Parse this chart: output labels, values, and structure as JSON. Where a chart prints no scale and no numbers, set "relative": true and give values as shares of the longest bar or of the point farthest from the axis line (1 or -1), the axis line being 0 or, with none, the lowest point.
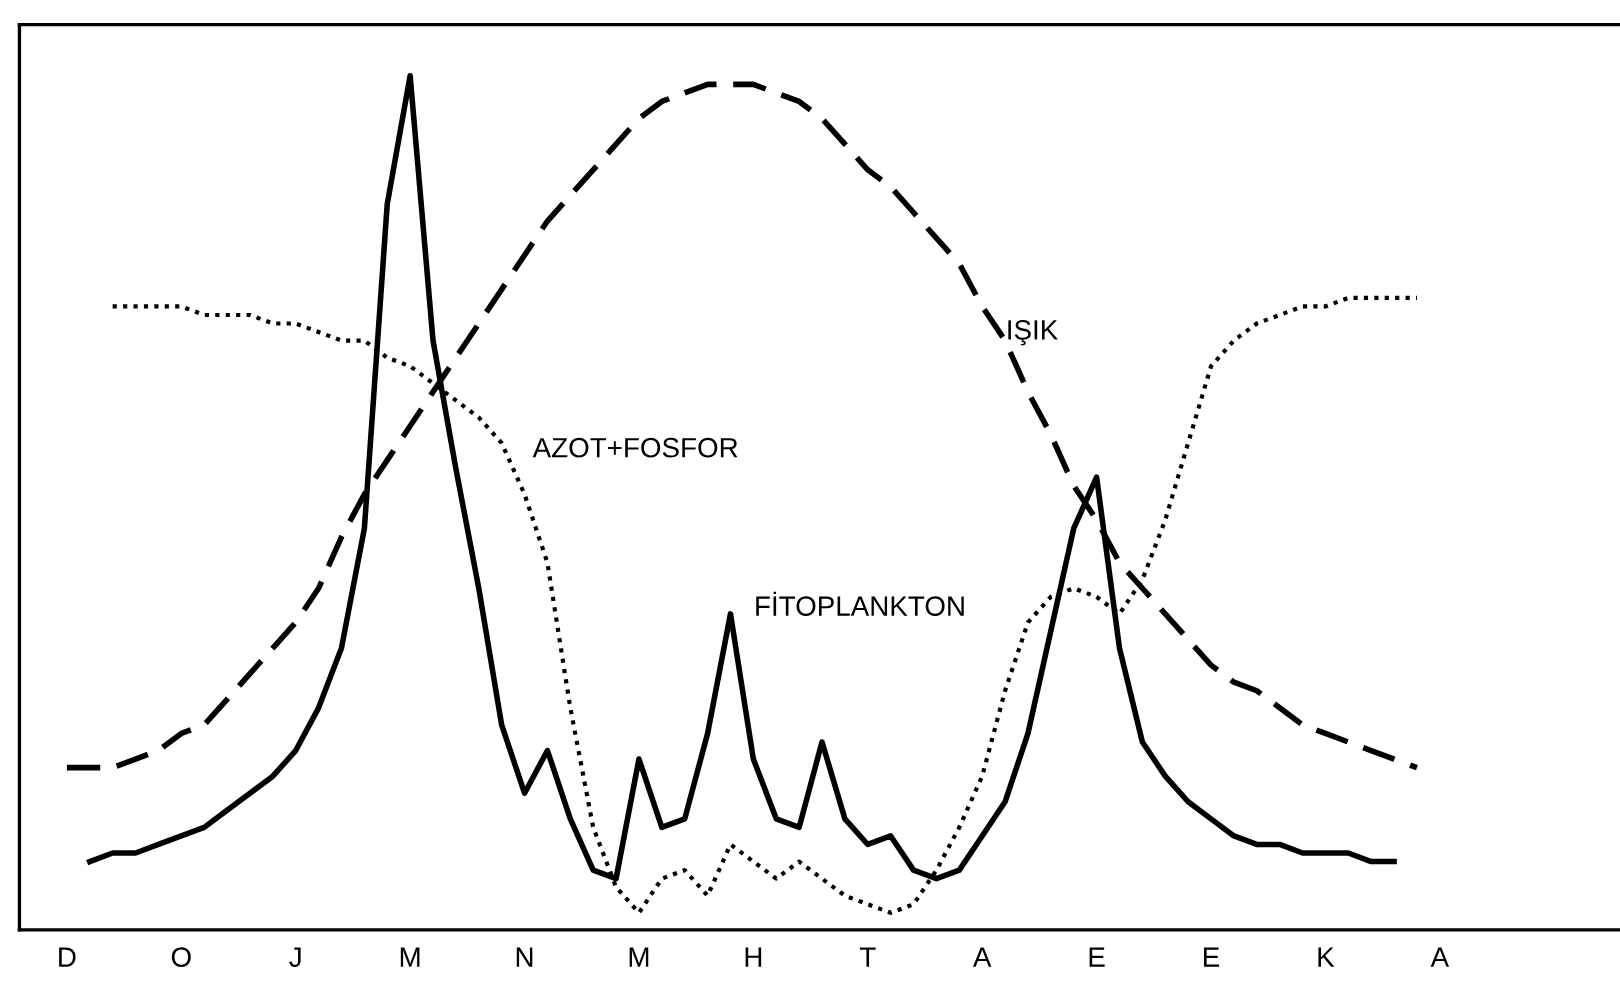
{
  "chart_data": {
    "type": "line",
    "relative": true,
    "categories": [
      "D",
      null,
      null,
      null,
      null,
      "O",
      null,
      null,
      null,
      null,
      "J",
      null,
      null,
      null,
      null,
      "M",
      null,
      null,
      null,
      null,
      "N",
      null,
      null,
      null,
      null,
      "M",
      null,
      null,
      null,
      null,
      "H",
      null,
      null,
      null,
      null,
      "T",
      null,
      null,
      null,
      null,
      "A",
      null,
      null,
      null,
      null,
      "E",
      null,
      null,
      null,
      null,
      "E",
      null,
      null,
      null,
      null,
      "K",
      null,
      null,
      null,
      null,
      "A"
    ],
    "series": [
      {
        "color": "#000000",
        "line_style": "solid",
        "values": [
          null,
          0.08,
          0.09,
          0.09,
          0.1,
          0.11,
          0.12,
          0.14,
          0.16,
          0.18,
          0.21,
          0.26,
          0.33,
          0.47,
          0.85,
          1.0,
          0.69,
          0.54,
          0.4,
          0.24,
          0.16,
          0.21,
          0.13,
          0.07,
          0.06,
          0.2,
          0.12,
          0.13,
          0.23,
          0.37,
          0.2,
          0.13,
          0.12,
          0.22,
          0.13,
          0.1,
          0.11,
          0.07,
          0.06,
          0.07,
          0.11,
          0.15,
          0.23,
          0.35,
          0.47,
          0.53,
          0.33,
          0.22,
          0.18,
          0.15,
          0.13,
          0.11,
          0.1,
          0.1,
          0.09,
          0.09,
          0.09,
          0.08,
          0.08,
          null,
          null
        ]
      },
      {
        "color": "#000000",
        "line_style": "dashed",
        "values": [
          0.19,
          0.19,
          0.19,
          0.2,
          0.21,
          0.23,
          0.24,
          0.27,
          0.3,
          0.33,
          0.36,
          0.4,
          0.46,
          0.51,
          0.55,
          0.59,
          0.63,
          0.67,
          0.71,
          0.75,
          0.79,
          0.83,
          0.86,
          0.89,
          0.92,
          0.95,
          0.97,
          0.98,
          0.99,
          0.99,
          0.99,
          0.98,
          0.97,
          0.95,
          0.92,
          0.89,
          0.87,
          0.84,
          0.81,
          0.78,
          0.73,
          0.69,
          0.63,
          0.58,
          0.52,
          0.48,
          0.43,
          0.4,
          0.37,
          0.34,
          0.31,
          0.29,
          0.28,
          0.26,
          0.24,
          0.23,
          0.22,
          0.21,
          0.2,
          0.19,
          null
        ]
      },
      {
        "color": "#000000",
        "line_style": "dotted",
        "values": [
          null,
          null,
          0.73,
          0.73,
          0.73,
          0.73,
          0.72,
          0.72,
          0.72,
          0.71,
          0.71,
          0.7,
          0.69,
          0.69,
          0.67,
          0.66,
          0.64,
          0.62,
          0.6,
          0.57,
          0.51,
          0.43,
          0.26,
          0.12,
          0.05,
          0.02,
          0.06,
          0.07,
          0.04,
          0.1,
          0.08,
          0.06,
          0.08,
          0.06,
          0.04,
          0.03,
          0.02,
          0.03,
          0.07,
          0.12,
          0.18,
          0.28,
          0.36,
          0.39,
          0.4,
          0.39,
          0.37,
          0.41,
          0.48,
          0.57,
          0.66,
          0.69,
          0.71,
          0.72,
          0.73,
          0.73,
          0.74,
          0.74,
          0.74,
          0.74,
          null
        ]
      }
    ],
    "annotations": [
      "IŞIK",
      "AZOT+FOSFOR",
      "FİTOPLANKTON"
    ],
    "grid": false
  }
}
